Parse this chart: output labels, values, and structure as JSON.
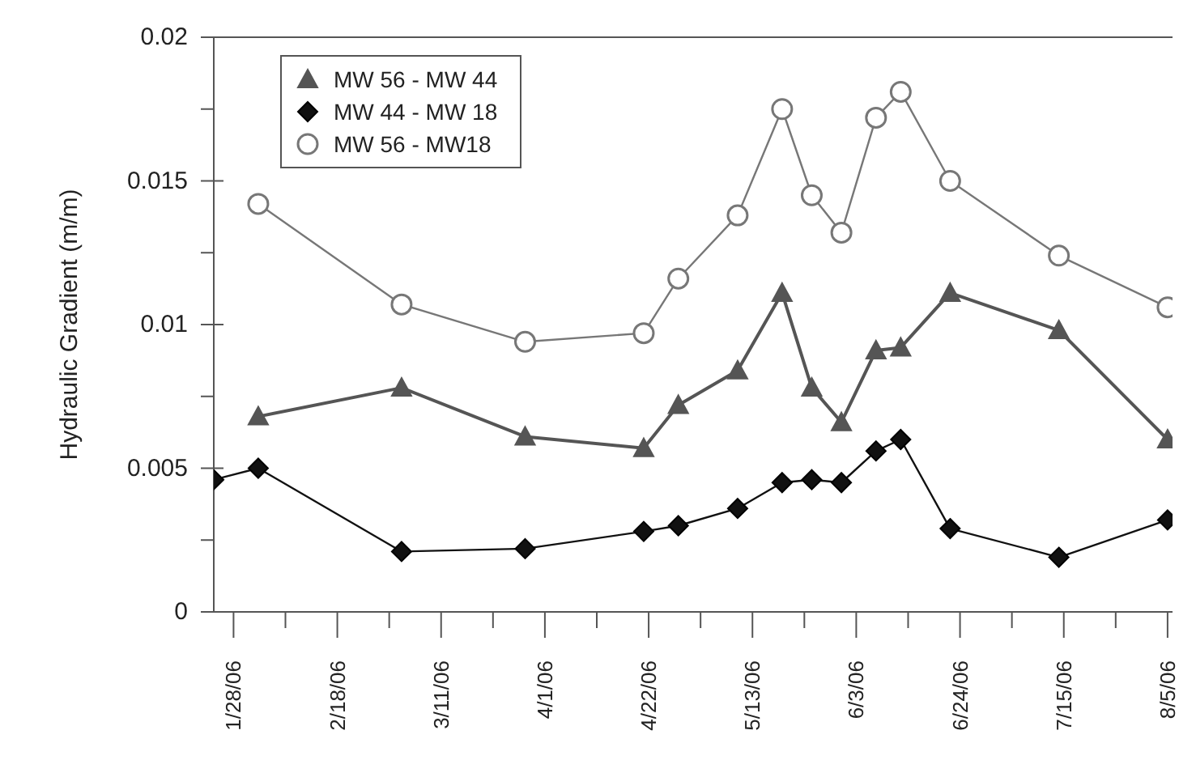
{
  "chart_data": {
    "type": "line",
    "ylabel": "Hydraulic Gradient (m/m)",
    "xlim": [
      "--01-24",
      "--08-06"
    ],
    "xticks": [
      {
        "value": "--01-28",
        "label": "1/28/06"
      },
      {
        "value": "--02-07T12:00",
        "label": null
      },
      {
        "value": "--02-18",
        "label": "2/18/06"
      },
      {
        "value": "--02-28T12:00",
        "label": null
      },
      {
        "value": "--03-11",
        "label": "3/11/06"
      },
      {
        "value": "--03-21T12:00",
        "label": null
      },
      {
        "value": "--04-01",
        "label": "4/1/06"
      },
      {
        "value": "--04-11T12:00",
        "label": null
      },
      {
        "value": "--04-22",
        "label": "4/22/06"
      },
      {
        "value": "--05-02T12:00",
        "label": null
      },
      {
        "value": "--05-13",
        "label": "5/13/06"
      },
      {
        "value": "--05-23T12:00",
        "label": null
      },
      {
        "value": "--06-03",
        "label": "6/3/06"
      },
      {
        "value": "--06-13T12:00",
        "label": null
      },
      {
        "value": "--06-24",
        "label": "6/24/06"
      },
      {
        "value": "--07-04T12:00",
        "label": null
      },
      {
        "value": "--07-15",
        "label": "7/15/06"
      },
      {
        "value": "--07-25T12:00",
        "label": null
      },
      {
        "value": "--08-05",
        "label": "8/5/06"
      }
    ],
    "ylim": [
      0,
      0.02
    ],
    "yticks": [
      0,
      {
        "value": 0.0025,
        "label": null
      },
      0.005,
      {
        "value": 0.0075,
        "label": null
      },
      0.01,
      {
        "value": 0.0125,
        "label": null
      },
      0.015,
      {
        "value": 0.0175,
        "label": null
      },
      0.02
    ],
    "legend": "top left",
    "series": [
      {
        "name": "MW 56 - MW 44",
        "color": "#555555",
        "marker": "triangle",
        "x": [
          "--02-02",
          "--03-03",
          "--03-28",
          "--04-21",
          "--04-28",
          "--05-10",
          "--05-19",
          "--05-25",
          "--05-31",
          "--06-07",
          "--06-12",
          "--06-22",
          "--07-14",
          "--08-05"
        ],
        "values": [
          0.0068,
          0.0078,
          0.0061,
          0.0057,
          0.0072,
          0.0084,
          0.0111,
          0.0078,
          0.0066,
          0.0091,
          0.0092,
          0.0111,
          0.0098,
          0.006
        ]
      },
      {
        "name": "MW 44 - MW 18",
        "color": "#111111",
        "marker": "diamond",
        "x": [
          "--01-24",
          "--02-02",
          "--03-03",
          "--03-28",
          "--04-21",
          "--04-28",
          "--05-10",
          "--05-19",
          "--05-25",
          "--05-31",
          "--06-07",
          "--06-12",
          "--06-22",
          "--07-14",
          "--08-05"
        ],
        "values": [
          0.0046,
          0.005,
          0.0021,
          0.0022,
          0.0028,
          0.003,
          0.0036,
          0.0045,
          0.0046,
          0.0045,
          0.0056,
          0.006,
          0.0029,
          0.0019,
          0.0032
        ]
      },
      {
        "name": "MW 56 - MW18",
        "color": "#777777",
        "marker": "circle",
        "x": [
          "--02-02",
          "--03-03",
          "--03-28",
          "--04-21",
          "--04-28",
          "--05-10",
          "--05-19",
          "--05-25",
          "--05-31",
          "--06-07",
          "--06-12",
          "--06-22",
          "--07-14",
          "--08-05"
        ],
        "values": [
          0.0142,
          0.0107,
          0.0094,
          0.0097,
          0.0116,
          0.0138,
          0.0175,
          0.0145,
          0.0132,
          0.0172,
          0.0181,
          0.015,
          0.0124,
          0.0106
        ]
      }
    ]
  }
}
